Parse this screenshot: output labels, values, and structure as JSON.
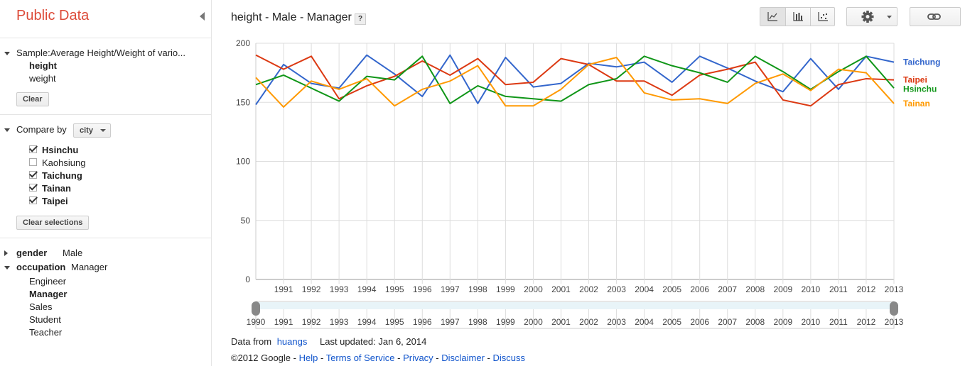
{
  "sidebar": {
    "brand": "Public Data",
    "dataset": {
      "label": "Sample:Average Height/Weight of vario...",
      "metrics": [
        {
          "label": "height",
          "selected": true
        },
        {
          "label": "weight",
          "selected": false
        }
      ],
      "clear_label": "Clear"
    },
    "compare": {
      "label": "Compare by",
      "dropdown_value": "city",
      "options": [
        {
          "label": "Hsinchu",
          "checked": true
        },
        {
          "label": "Kaohsiung",
          "checked": false
        },
        {
          "label": "Taichung",
          "checked": true
        },
        {
          "label": "Tainan",
          "checked": true
        },
        {
          "label": "Taipei",
          "checked": true
        }
      ],
      "clear_label": "Clear selections"
    },
    "filters": {
      "gender": {
        "label": "gender",
        "value": "Male"
      },
      "occupation": {
        "label": "occupation",
        "value": "Manager",
        "items": [
          "Engineer",
          "Manager",
          "Sales",
          "Student",
          "Teacher"
        ],
        "selected": "Manager"
      }
    }
  },
  "header": {
    "title": "height - Male - Manager",
    "help_label": "?"
  },
  "toolbar": {
    "icons": [
      "line-chart-icon",
      "bar-chart-icon",
      "scatter-chart-icon",
      "gear-icon",
      "link-icon"
    ]
  },
  "footer": {
    "data_from_label": "Data from",
    "data_from_link": "huangs",
    "last_updated": "Last updated: Jan 6, 2014",
    "copyright": "©2012 Google -",
    "links": [
      "Help",
      "Terms of Service",
      "Privacy",
      "Disclaimer",
      "Discuss"
    ]
  },
  "chart_data": {
    "type": "line",
    "x": [
      1990,
      1991,
      1992,
      1993,
      1994,
      1995,
      1996,
      1997,
      1998,
      1999,
      2000,
      2001,
      2002,
      2003,
      2004,
      2005,
      2006,
      2007,
      2008,
      2009,
      2010,
      2011,
      2012,
      2013
    ],
    "ylim": [
      0,
      200
    ],
    "yticks": [
      0,
      50,
      100,
      150,
      200
    ],
    "grid": true,
    "range_labels": [
      "1990",
      "1991",
      "1992",
      "1993",
      "1994",
      "1995",
      "1996",
      "1997",
      "1998",
      "1999",
      "2000",
      "2001",
      "2002",
      "2003",
      "2004",
      "2005",
      "2006",
      "2007",
      "2008",
      "2009",
      "2010",
      "2011",
      "2012",
      "2013"
    ],
    "series": [
      {
        "name": "Taichung",
        "color": "#3366cc",
        "values": [
          148,
          182,
          166,
          162,
          190,
          174,
          155,
          190,
          149,
          188,
          163,
          166,
          183,
          180,
          184,
          167,
          189,
          179,
          168,
          159,
          187,
          161,
          189,
          184
        ]
      },
      {
        "name": "Taipei",
        "color": "#dc3912",
        "values": [
          190,
          178,
          189,
          153,
          164,
          172,
          185,
          173,
          187,
          165,
          167,
          187,
          182,
          168,
          168,
          156,
          173,
          178,
          184,
          152,
          147,
          165,
          170,
          169
        ]
      },
      {
        "name": "Hsinchu",
        "color": "#109618",
        "values": [
          165,
          173,
          162,
          151,
          172,
          169,
          189,
          149,
          164,
          155,
          153,
          151,
          165,
          170,
          189,
          181,
          175,
          167,
          189,
          176,
          161,
          176,
          189,
          162
        ]
      },
      {
        "name": "Tainan",
        "color": "#ff9900",
        "values": [
          171,
          146,
          168,
          161,
          170,
          147,
          161,
          168,
          181,
          147,
          147,
          161,
          182,
          188,
          158,
          152,
          153,
          149,
          166,
          174,
          160,
          178,
          175,
          149
        ]
      }
    ]
  }
}
